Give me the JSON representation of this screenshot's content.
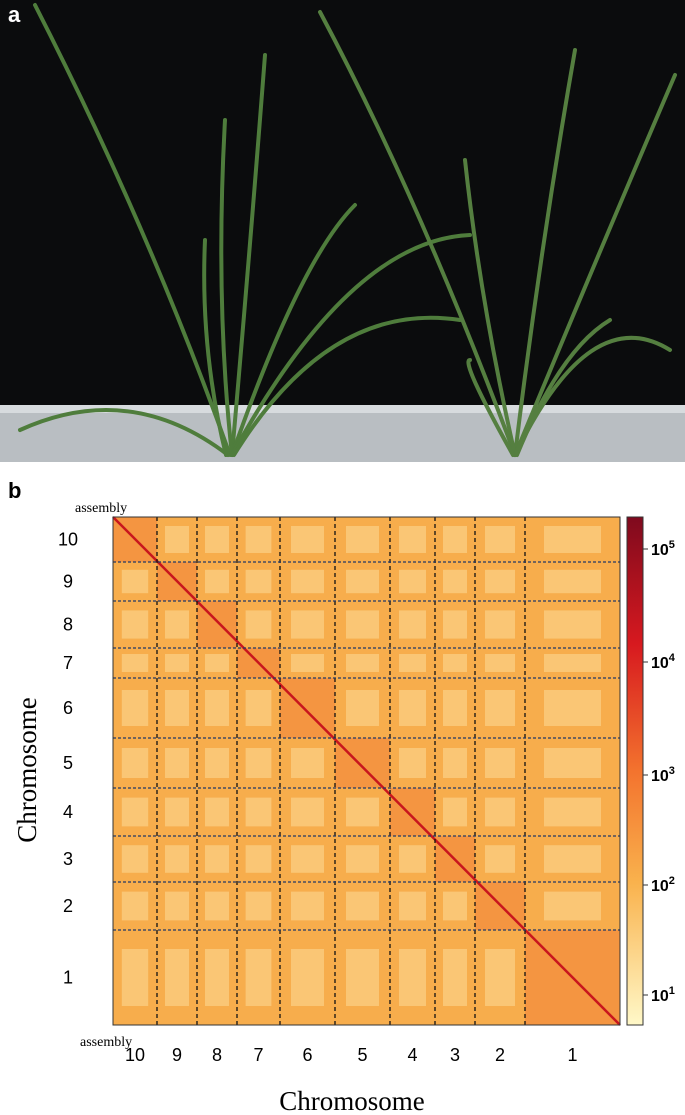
{
  "panels": [
    {
      "label": "a"
    },
    {
      "label": "b"
    }
  ],
  "heatmap": {
    "top_label": "assembly",
    "bottom_label": "assembly",
    "y_axis_title": "Chromosome",
    "x_axis_title": "Chromosome",
    "y_labels": [
      "10",
      "9",
      "8",
      "7",
      "6",
      "5",
      "4",
      "3",
      "2",
      "1"
    ],
    "x_labels": [
      "10",
      "9",
      "8",
      "7",
      "6",
      "5",
      "4",
      "3",
      "2",
      "1"
    ],
    "colorbar_labels": [
      {
        "base": "10",
        "exponent": "5"
      },
      {
        "base": "10",
        "exponent": "4"
      },
      {
        "base": "10",
        "exponent": "3"
      },
      {
        "base": "10",
        "exponent": "2"
      },
      {
        "base": "10",
        "exponent": "1"
      }
    ]
  }
}
